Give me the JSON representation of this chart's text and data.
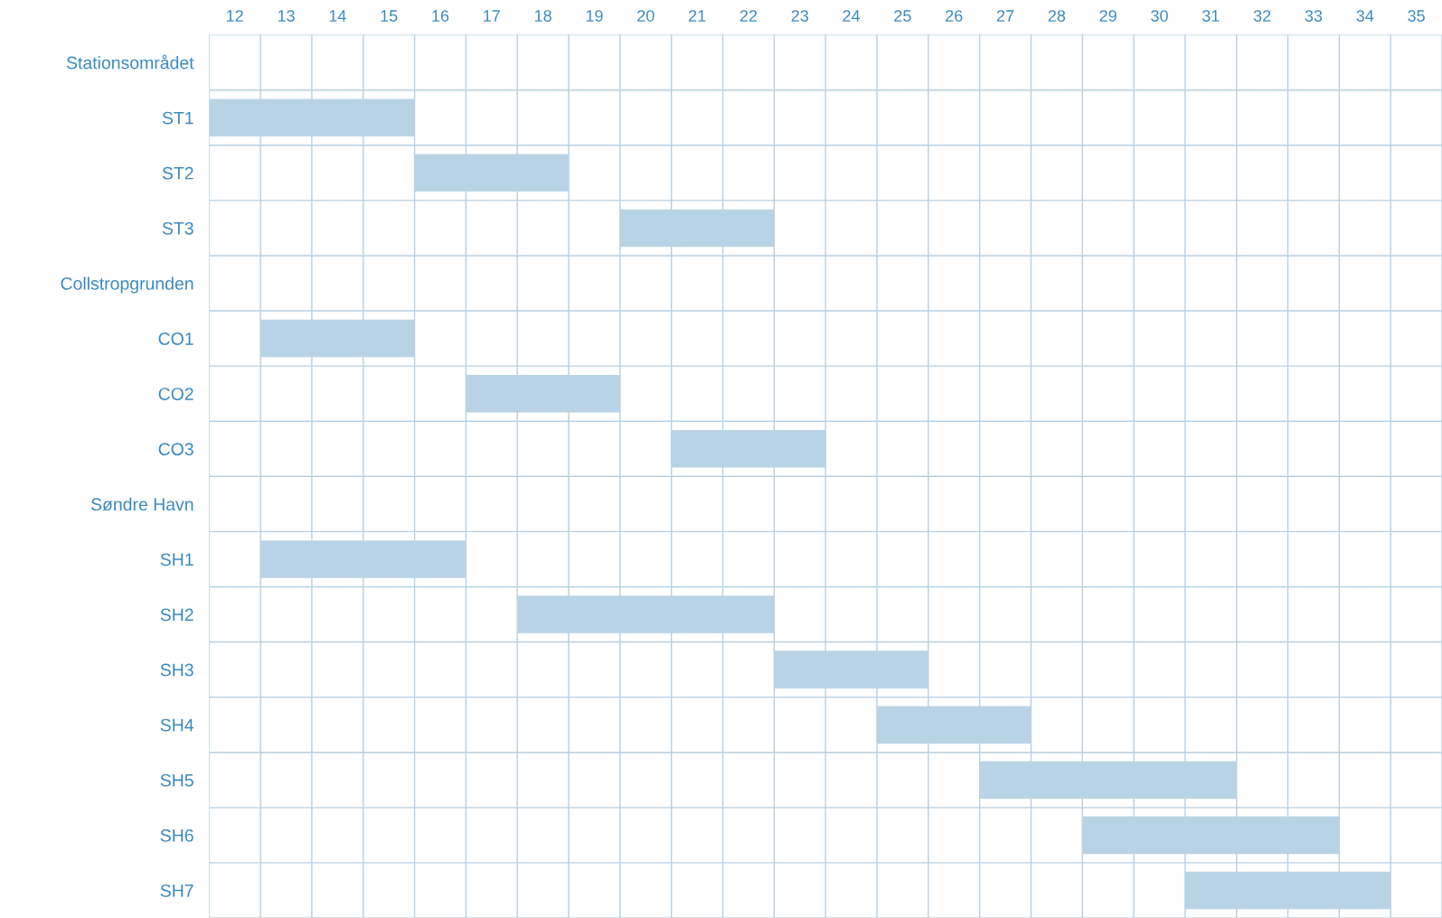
{
  "chart_data": {
    "type": "bar",
    "orientation": "horizontal",
    "categories": [
      "Stationsområdet",
      "ST1",
      "ST2",
      "ST3",
      "Collstropgrunden",
      "CO1",
      "CO2",
      "CO3",
      "Søndre Havn",
      "SH1",
      "SH2",
      "SH3",
      "SH4",
      "SH5",
      "SH6",
      "SH7"
    ],
    "base": [
      null,
      11.5,
      15.5,
      19.5,
      null,
      12.5,
      16.5,
      20.5,
      null,
      12.5,
      17.5,
      22.5,
      24.5,
      26.5,
      28.5,
      30.5
    ],
    "values": [
      null,
      4,
      3,
      3,
      null,
      3,
      3,
      3,
      null,
      4,
      5,
      3,
      3,
      5,
      5,
      4
    ],
    "color": "#b9d3e6",
    "xlim": [
      11.5,
      35.5
    ],
    "xticks": [
      12,
      13,
      14,
      15,
      16,
      17,
      18,
      19,
      20,
      21,
      22,
      23,
      24,
      25,
      26,
      27,
      28,
      29,
      30,
      31,
      32,
      33,
      34,
      35,
      {
        "value": 11.5,
        "label": null
      },
      {
        "value": 12.5,
        "label": null
      },
      {
        "value": 13.5,
        "label": null
      },
      {
        "value": 14.5,
        "label": null
      },
      {
        "value": 15.5,
        "label": null
      },
      {
        "value": 16.5,
        "label": null
      },
      {
        "value": 17.5,
        "label": null
      },
      {
        "value": 18.5,
        "label": null
      },
      {
        "value": 19.5,
        "label": null
      },
      {
        "value": 20.5,
        "label": null
      },
      {
        "value": 21.5,
        "label": null
      },
      {
        "value": 22.5,
        "label": null
      },
      {
        "value": 23.5,
        "label": null
      },
      {
        "value": 24.5,
        "label": null
      },
      {
        "value": 25.5,
        "label": null
      },
      {
        "value": 26.5,
        "label": null
      },
      {
        "value": 27.5,
        "label": null
      },
      {
        "value": 28.5,
        "label": null
      },
      {
        "value": 29.5,
        "label": null
      },
      {
        "value": 30.5,
        "label": null
      },
      {
        "value": 31.5,
        "label": null
      },
      {
        "value": 32.5,
        "label": null
      },
      {
        "value": 33.5,
        "label": null
      },
      {
        "value": 34.5,
        "label": null
      },
      {
        "value": 35.5,
        "label": null
      }
    ],
    "grid": true
  }
}
